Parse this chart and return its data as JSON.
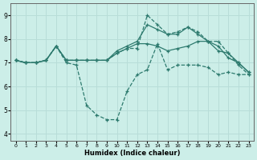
{
  "title": "",
  "xlabel": "Humidex (Indice chaleur)",
  "bg_color": "#cceee8",
  "grid_color": "#b8ddd8",
  "line_color": "#2d7a6e",
  "xlim": [
    -0.5,
    23.5
  ],
  "ylim": [
    3.7,
    9.5
  ],
  "xticks": [
    0,
    1,
    2,
    3,
    4,
    5,
    6,
    7,
    8,
    9,
    10,
    11,
    12,
    13,
    14,
    15,
    16,
    17,
    18,
    19,
    20,
    21,
    22,
    23
  ],
  "yticks": [
    4,
    5,
    6,
    7,
    8,
    9
  ],
  "series": {
    "line_dip": {
      "x": [
        0,
        1,
        2,
        3,
        4,
        5,
        6,
        7,
        8,
        9,
        10,
        11,
        12,
        13,
        14,
        15,
        16,
        17,
        18,
        19,
        20,
        21,
        22,
        23
      ],
      "y": [
        7.1,
        7.0,
        7.0,
        7.1,
        7.7,
        7.0,
        6.9,
        5.2,
        4.8,
        4.6,
        4.6,
        5.8,
        6.5,
        6.7,
        7.8,
        6.7,
        6.9,
        6.9,
        6.9,
        6.8,
        6.5,
        6.6,
        6.5,
        6.5
      ]
    },
    "line_mid": {
      "x": [
        0,
        1,
        2,
        3,
        4,
        5,
        6,
        7,
        8,
        9,
        10,
        11,
        12,
        13,
        14,
        15,
        16,
        17,
        18,
        19,
        20,
        21,
        22,
        23
      ],
      "y": [
        7.1,
        7.0,
        7.0,
        7.1,
        7.7,
        7.1,
        7.1,
        7.1,
        7.1,
        7.1,
        7.4,
        7.6,
        7.8,
        7.8,
        7.7,
        7.5,
        7.6,
        7.7,
        7.9,
        7.9,
        7.7,
        7.2,
        7.0,
        6.6
      ]
    },
    "line_upper": {
      "x": [
        0,
        1,
        2,
        3,
        4,
        5,
        6,
        7,
        8,
        9,
        10,
        11,
        12,
        13,
        14,
        15,
        16,
        17,
        18,
        19,
        20,
        21,
        22,
        23
      ],
      "y": [
        7.1,
        7.0,
        7.0,
        7.1,
        7.7,
        7.1,
        7.1,
        7.1,
        7.1,
        7.1,
        7.5,
        7.7,
        7.9,
        8.6,
        8.4,
        8.2,
        8.2,
        8.5,
        8.2,
        7.9,
        7.5,
        7.4,
        7.0,
        6.6
      ]
    },
    "line_spike": {
      "x": [
        0,
        1,
        2,
        3,
        4,
        5,
        6,
        7,
        8,
        9,
        10,
        11,
        12,
        13,
        14,
        15,
        16,
        17,
        18,
        19,
        20,
        21,
        22,
        23
      ],
      "y": [
        7.1,
        7.0,
        7.0,
        7.1,
        7.7,
        7.1,
        7.1,
        7.1,
        7.1,
        7.1,
        7.4,
        7.6,
        7.6,
        9.0,
        8.6,
        8.2,
        8.3,
        8.5,
        8.3,
        7.9,
        7.9,
        7.4,
        6.9,
        6.5
      ]
    }
  }
}
